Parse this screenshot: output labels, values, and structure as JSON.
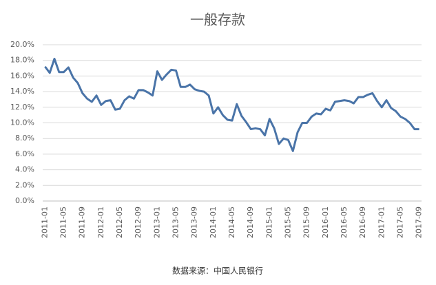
{
  "chart_data": {
    "type": "line",
    "title": "一般存款",
    "source": "数据来源：中国人民银行",
    "categories": [
      "2011-01",
      null,
      null,
      null,
      "2011-05",
      null,
      null,
      null,
      "2011-09",
      null,
      null,
      null,
      "2012-01",
      null,
      null,
      null,
      "2012-05",
      null,
      null,
      null,
      "2012-09",
      null,
      null,
      null,
      "2013-01",
      null,
      null,
      null,
      "2013-05",
      null,
      null,
      null,
      "2013-09",
      null,
      null,
      null,
      "2014-01",
      null,
      null,
      null,
      "2014-05",
      null,
      null,
      null,
      "2014-09",
      null,
      null,
      null,
      "2015-01",
      null,
      null,
      null,
      "2015-05",
      null,
      null,
      null,
      "2015-09",
      null,
      null,
      null,
      "2016-01",
      null,
      null,
      null,
      "2016-05",
      null,
      null,
      null,
      "2016-09",
      null,
      null,
      null,
      "2017-01",
      null,
      null,
      null,
      "2017-05",
      null,
      null,
      null,
      "2017-09"
    ],
    "values": [
      17.2,
      16.4,
      18.2,
      16.5,
      16.5,
      17.1,
      15.8,
      15.1,
      13.8,
      13.1,
      12.7,
      13.5,
      12.3,
      12.8,
      12.9,
      11.7,
      11.8,
      12.9,
      13.4,
      13.1,
      14.2,
      14.2,
      13.9,
      13.5,
      16.6,
      15.5,
      16.2,
      16.8,
      16.7,
      14.6,
      14.6,
      14.9,
      14.3,
      14.1,
      14.0,
      13.5,
      11.2,
      12.0,
      11.0,
      10.4,
      10.3,
      12.4,
      10.9,
      10.1,
      9.2,
      9.3,
      9.2,
      8.4,
      10.5,
      9.3,
      7.3,
      8.0,
      7.8,
      6.4,
      8.8,
      10.0,
      10.0,
      10.8,
      11.2,
      11.1,
      11.8,
      11.6,
      12.7,
      12.8,
      12.9,
      12.8,
      12.5,
      13.3,
      13.3,
      13.6,
      13.8,
      12.8,
      12.0,
      12.9,
      11.9,
      11.5,
      10.8,
      10.5,
      10.0,
      9.2,
      9.2
    ],
    "color": "#4a74a8",
    "ylim": [
      0,
      20
    ],
    "yticks": [
      {
        "value": 0,
        "label": "0.0%"
      },
      {
        "value": 2,
        "label": "2.0%"
      },
      {
        "value": 4,
        "label": "4.0%"
      },
      {
        "value": 6,
        "label": "6.0%"
      },
      {
        "value": 8,
        "label": "8.0%"
      },
      {
        "value": 10,
        "label": "10.0%"
      },
      {
        "value": 12,
        "label": "12.0%"
      },
      {
        "value": 14,
        "label": "14.0%"
      },
      {
        "value": 16,
        "label": "16.0%"
      },
      {
        "value": 18,
        "label": "18.0%"
      },
      {
        "value": 20,
        "label": "20.0%"
      }
    ],
    "grid": true
  }
}
